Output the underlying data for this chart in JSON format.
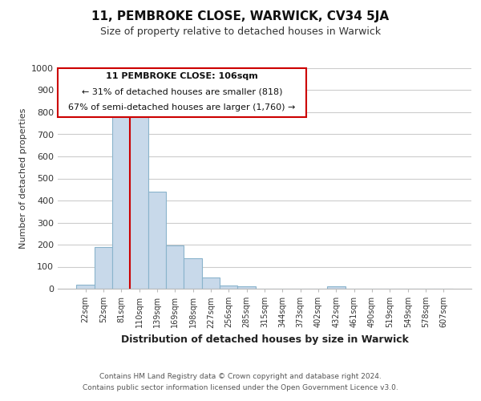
{
  "title": "11, PEMBROKE CLOSE, WARWICK, CV34 5JA",
  "subtitle": "Size of property relative to detached houses in Warwick",
  "xlabel": "Distribution of detached houses by size in Warwick",
  "ylabel": "Number of detached properties",
  "bar_labels": [
    "22sqm",
    "52sqm",
    "81sqm",
    "110sqm",
    "139sqm",
    "169sqm",
    "198sqm",
    "227sqm",
    "256sqm",
    "285sqm",
    "315sqm",
    "344sqm",
    "373sqm",
    "402sqm",
    "432sqm",
    "461sqm",
    "490sqm",
    "519sqm",
    "549sqm",
    "578sqm",
    "607sqm"
  ],
  "bar_values": [
    20,
    190,
    790,
    790,
    440,
    195,
    140,
    50,
    15,
    10,
    0,
    0,
    0,
    0,
    10,
    0,
    0,
    0,
    0,
    0,
    0
  ],
  "bar_color": "#c8d9ea",
  "bar_edge_color": "#8ab4cc",
  "vline_x": 2.5,
  "vline_color": "#cc0000",
  "ylim": [
    0,
    1000
  ],
  "yticks": [
    0,
    100,
    200,
    300,
    400,
    500,
    600,
    700,
    800,
    900,
    1000
  ],
  "annotation_title": "11 PEMBROKE CLOSE: 106sqm",
  "annotation_line1": "← 31% of detached houses are smaller (818)",
  "annotation_line2": "67% of semi-detached houses are larger (1,760) →",
  "annotation_box_color": "#ffffff",
  "annotation_box_edge": "#cc0000",
  "footer_line1": "Contains HM Land Registry data © Crown copyright and database right 2024.",
  "footer_line2": "Contains public sector information licensed under the Open Government Licence v3.0.",
  "background_color": "#ffffff",
  "grid_color": "#cccccc"
}
